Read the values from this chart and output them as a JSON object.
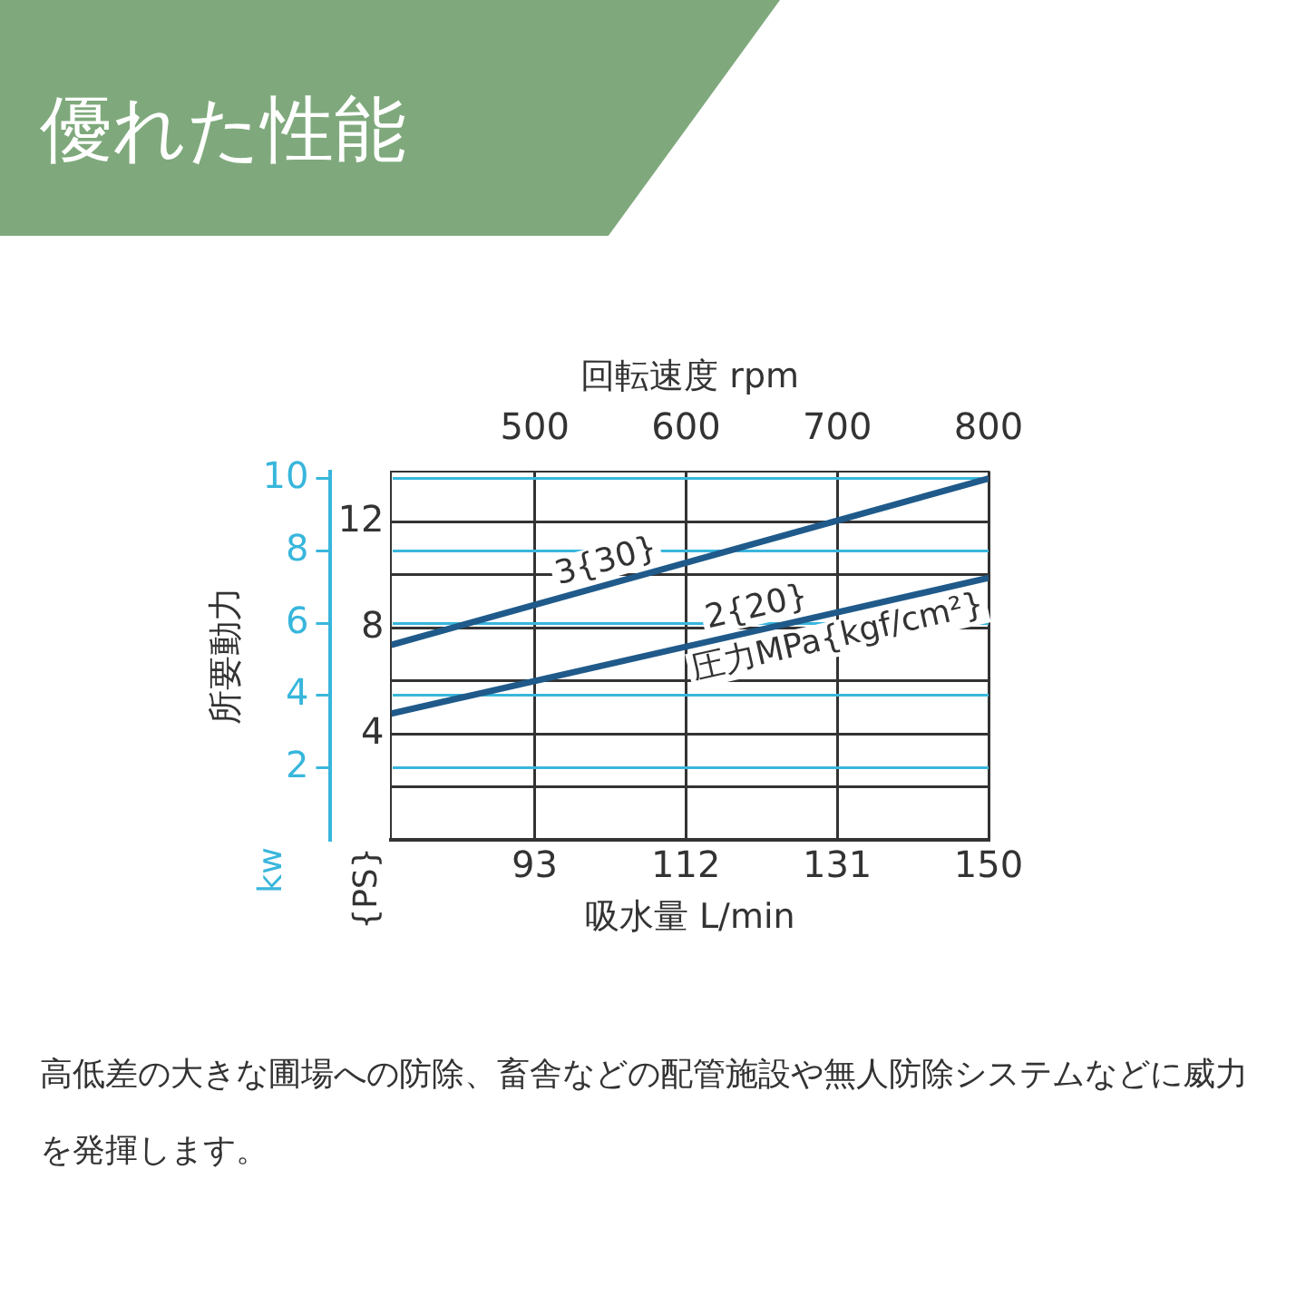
{
  "chart_data": {
    "type": "line",
    "title": "優れた性能",
    "xlabel": "吸水量 L/min",
    "x2label": "回転速度 rpm",
    "ylabel": "所要動力",
    "x": [
      75,
      150
    ],
    "xlim": [
      75,
      150
    ],
    "xticks": [
      93,
      112,
      131,
      150
    ],
    "x2lim": [
      405,
      800
    ],
    "x2ticks": [
      500,
      600,
      700,
      800
    ],
    "ylim": [
      0,
      10.2
    ],
    "yticks": [
      2,
      4,
      6,
      8,
      10
    ],
    "y2lim": [
      0,
      13.9
    ],
    "y2ticks": [
      {
        "value": 2,
        "label": null
      },
      4,
      {
        "value": 6,
        "label": null
      },
      8,
      {
        "value": 10,
        "label": null
      },
      12
    ],
    "series": [
      {
        "name": "3{30}",
        "color": "#1f5a8a",
        "values": [
          5.4,
          10.0
        ]
      },
      {
        "name": "2{20}",
        "color": "#1f5a8a",
        "values": [
          3.5,
          7.25
        ]
      }
    ],
    "annotations": [
      "圧力MPa{kgf/cm²}",
      "kw",
      "{PS}",
      "高低差の大きな圃場への防除、畜舎などの配管施設や無人防除システムなどに威力を発揮します。"
    ],
    "grid": true,
    "legend": false,
    "marker": "none",
    "line_style": "solid"
  }
}
